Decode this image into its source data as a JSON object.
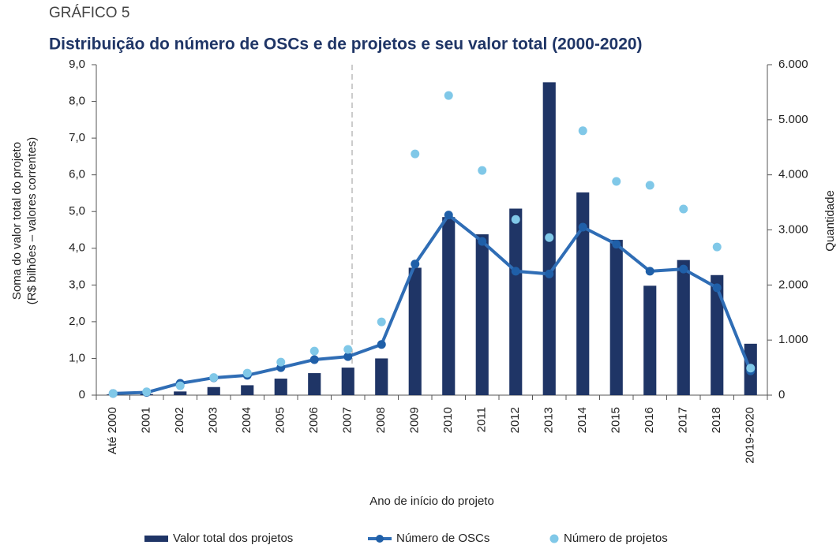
{
  "chart_data": {
    "type": "bar",
    "kicker": "GRÁFICO 5",
    "title": "Distribuição do número de OSCs e de projetos e seu valor total (2000-2020)",
    "y_label": [
      "Soma do valor total do projeto",
      "(R$ bilhões – valores correntes)"
    ],
    "y2_label": "Quantidade",
    "x_label": "Ano de início do projeto",
    "categories": [
      "Até 2000",
      "2001",
      "2002",
      "2003",
      "2004",
      "2005",
      "2006",
      "2007",
      "2008",
      "2009",
      "2010",
      "2011",
      "2012",
      "2013",
      "2014",
      "2015",
      "2016",
      "2017",
      "2018",
      "2019-2020"
    ],
    "series": [
      {
        "name": "Valor total dos projetos",
        "type": "bar",
        "color": "#1f3566",
        "axis": "y",
        "values": [
          0.02,
          0.03,
          0.1,
          0.22,
          0.27,
          0.45,
          0.6,
          0.75,
          1.0,
          3.47,
          4.85,
          4.38,
          5.08,
          8.52,
          5.52,
          4.23,
          2.98,
          3.68,
          3.27,
          1.4
        ]
      },
      {
        "name": "Número de OSCs",
        "type": "line",
        "color": "#2f6db5",
        "axis": "y2",
        "values": [
          30,
          50,
          215,
          315,
          360,
          500,
          645,
          700,
          920,
          2380,
          3270,
          2790,
          2250,
          2200,
          3050,
          2740,
          2250,
          2290,
          1950,
          440
        ]
      },
      {
        "name": "Número de projetos",
        "type": "scatter",
        "color": "#80c8e8",
        "axis": "y2",
        "values": [
          30,
          60,
          170,
          320,
          400,
          600,
          800,
          830,
          1330,
          4380,
          5440,
          4080,
          3190,
          2860,
          4800,
          3880,
          3810,
          3380,
          2690,
          490
        ]
      }
    ],
    "ylim": [
      0,
      9
    ],
    "yticks": [
      {
        "value": 0,
        "label": "0"
      },
      {
        "value": 1,
        "label": "1,0"
      },
      {
        "value": 2,
        "label": "2,0"
      },
      {
        "value": 3,
        "label": "3,0"
      },
      {
        "value": 4,
        "label": "4,0"
      },
      {
        "value": 5,
        "label": "5,0"
      },
      {
        "value": 6,
        "label": "6,0"
      },
      {
        "value": 7,
        "label": "7,0"
      },
      {
        "value": 8,
        "label": "8,0"
      },
      {
        "value": 9,
        "label": "9,0"
      }
    ],
    "y2lim": [
      0,
      6000
    ],
    "y2ticks": [
      0,
      {
        "value": 1000,
        "label": "1.000"
      },
      {
        "value": 2000,
        "label": "2.000"
      },
      {
        "value": 3000,
        "label": "3.000"
      },
      {
        "value": 4000,
        "label": "4.000"
      },
      {
        "value": 5000,
        "label": "5.000"
      },
      {
        "value": 6000,
        "label": "6.000"
      }
    ]
  }
}
